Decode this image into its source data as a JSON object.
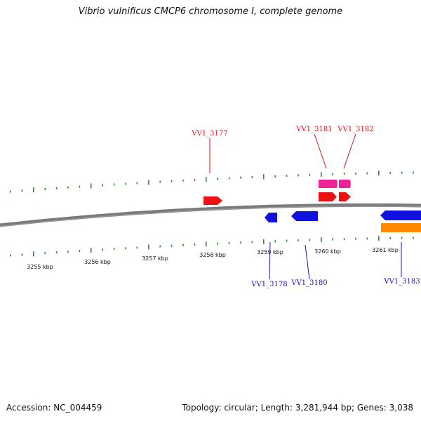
{
  "title": "Vibrio vulnificus CMCP6 chromosome I, complete genome",
  "footer": {
    "accession": "Accession: NC_004459",
    "topology": "Topology: circular; Length: 3,281,944 bp; Genes: 3,038"
  },
  "colors": {
    "backbone": "#7a7a7a",
    "tick": "#2e8b2e",
    "forward_cds": "#ee1111",
    "reverse_cds": "#1111dd",
    "forward_feature": "#ee2299",
    "reverse_feature": "#ff8800",
    "forward_label": "#dd1111",
    "reverse_label": "#1111cc"
  },
  "scale": {
    "unit": "kbp",
    "labels": [
      "3255 kbp",
      "3256 kbp",
      "3257 kbp",
      "3258 kbp",
      "3259 kbp",
      "3260 kbp",
      "3261 kbp"
    ]
  },
  "gene_labels": {
    "forward": [
      "VV1_3177",
      "VV1_3181",
      "VV1_3182"
    ],
    "reverse": [
      "VV1_3178",
      "VV1_3180",
      "VV1_3183"
    ]
  }
}
